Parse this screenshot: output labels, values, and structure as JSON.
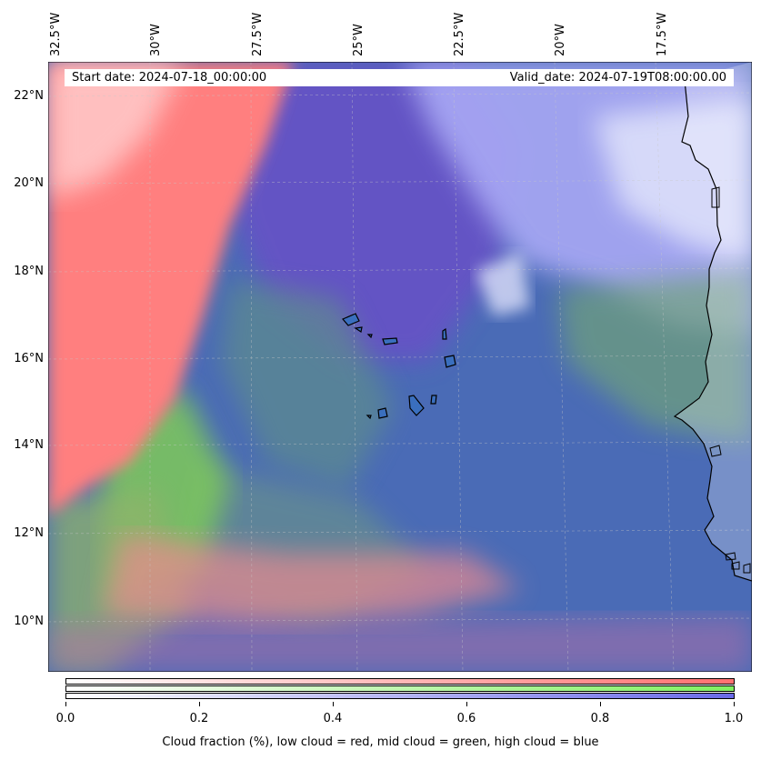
{
  "map": {
    "start_label": "Start date: 2024-07-18_00:00:00",
    "valid_label": "Valid_date: 2024-07-19T08:00:00.00",
    "longitude_labels": [
      "32.5°W",
      "30°W",
      "27.5°W",
      "25°W",
      "22.5°W",
      "20°W",
      "17.5°W"
    ],
    "latitude_labels": [
      "22°N",
      "20°N",
      "18°N",
      "16°N",
      "14°N",
      "12°N",
      "10°N"
    ],
    "layers": {
      "low_cloud_color": "#ff7f7f",
      "mid_cloud_color": "#80ee60",
      "high_cloud_color": "#7070f0",
      "ocean_color": "#4a6cb8",
      "coastline_color": "#000000"
    }
  },
  "colorbar": {
    "ticks": [
      "0.0",
      "0.2",
      "0.4",
      "0.6",
      "0.8",
      "1.0"
    ],
    "caption": "Cloud fraction (%), low cloud = red, mid cloud = green, high cloud = blue",
    "bars": [
      {
        "name": "low cloud",
        "color": "#ff7070"
      },
      {
        "name": "mid cloud",
        "color": "#80f060"
      },
      {
        "name": "high cloud",
        "color": "#6a6ae8"
      }
    ]
  }
}
